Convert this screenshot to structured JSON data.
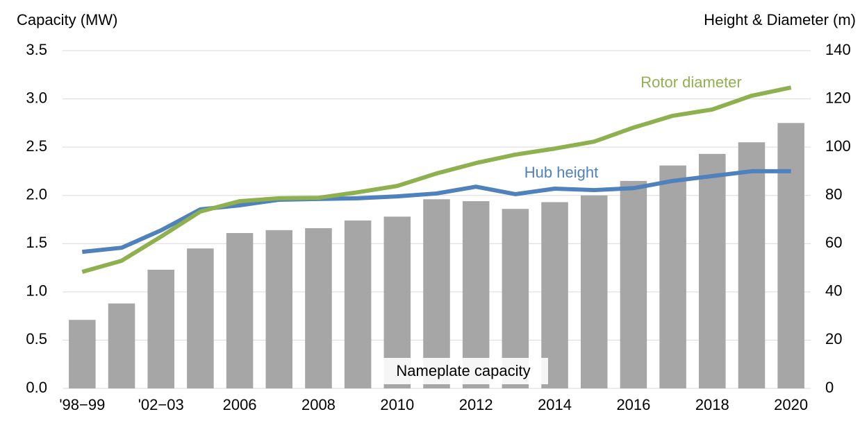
{
  "chart_data": {
    "type": "bar_line",
    "ylabel": "Capacity (MW)",
    "y2label": "Height & Diameter (m)",
    "categories": [
      "'98−99",
      null,
      "'02−03",
      null,
      "2006",
      null,
      "2008",
      null,
      "2010",
      null,
      "2012",
      null,
      "2014",
      null,
      "2016",
      null,
      "2018",
      null,
      "2020"
    ],
    "series": [
      {
        "name": "Nameplate capacity",
        "color": "#a6a6a6",
        "type": "bar",
        "values": [
          0.71,
          0.88,
          1.23,
          1.45,
          1.61,
          1.64,
          1.66,
          1.74,
          1.78,
          1.96,
          1.94,
          1.86,
          1.93,
          2.0,
          2.15,
          2.31,
          2.43,
          2.55,
          2.75
        ]
      },
      {
        "name": "Hub height",
        "color": "#4f81bd",
        "type": "line",
        "axis": "y2",
        "values": [
          56.6,
          58.3,
          65.5,
          74.2,
          75.9,
          78.2,
          78.5,
          78.8,
          79.6,
          80.8,
          83.6,
          80.5,
          82.8,
          82.2,
          83,
          86,
          88,
          90,
          90
        ]
      },
      {
        "name": "Rotor diameter",
        "color": "#8fb04f",
        "type": "line",
        "axis": "y2",
        "values": [
          48.3,
          52.9,
          62.9,
          73.3,
          77.6,
          78.8,
          79,
          81.3,
          83.9,
          89.1,
          93.4,
          96.9,
          99.4,
          102.3,
          108.1,
          113,
          115.6,
          121.3,
          124.7
        ]
      }
    ],
    "ylim": [
      0,
      3.5
    ],
    "yticks": [
      {
        "value": 0,
        "label": "0.0"
      },
      0.5,
      {
        "value": 1,
        "label": "1.0"
      },
      1.5,
      {
        "value": 2,
        "label": "2.0"
      },
      2.5,
      {
        "value": 3,
        "label": "3.0"
      },
      3.5
    ],
    "y2lim": [
      0,
      140
    ],
    "y2ticks": [
      0,
      20,
      40,
      60,
      80,
      100,
      120,
      140
    ],
    "grid": true
  }
}
